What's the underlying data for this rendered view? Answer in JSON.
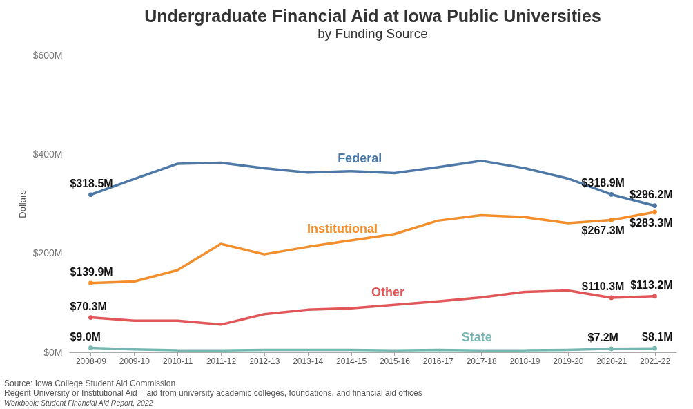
{
  "chart_data": {
    "type": "line",
    "title": "Undergraduate Financial Aid at Iowa Public Universities",
    "subtitle": "by Funding Source",
    "ylabel": "Dollars",
    "categories": [
      "2008-09",
      "2009-10",
      "2010-11",
      "2011-12",
      "2012-13",
      "2013-14",
      "2014-15",
      "2015-16",
      "2016-17",
      "2017-18",
      "2018-19",
      "2019-20",
      "2020-21",
      "2021-22"
    ],
    "series": [
      {
        "name": "Federal",
        "color": "#4e79a7",
        "values": [
          318.5,
          350,
          381,
          383,
          372,
          363,
          366,
          362,
          374,
          387,
          372,
          351,
          318.9,
          296.2
        ],
        "value_labels": [
          "$318.5M",
          null,
          null,
          null,
          null,
          null,
          null,
          null,
          null,
          null,
          null,
          null,
          "$318.9M",
          "$296.2M"
        ]
      },
      {
        "name": "Institutional",
        "color": "#f28e2b",
        "values": [
          139.9,
          143,
          166,
          219,
          198,
          213,
          226,
          239,
          266,
          277,
          273,
          261,
          267.3,
          283.3
        ],
        "value_labels": [
          "$139.9M",
          null,
          null,
          null,
          null,
          null,
          null,
          null,
          null,
          null,
          null,
          null,
          "$267.3M",
          "$283.3M"
        ]
      },
      {
        "name": "Other",
        "color": "#e15759",
        "values": [
          70.3,
          64,
          64,
          56,
          77,
          86,
          89,
          96,
          103,
          111,
          122,
          125,
          110.3,
          113.2
        ],
        "value_labels": [
          "$70.3M",
          null,
          null,
          null,
          null,
          null,
          null,
          null,
          null,
          null,
          null,
          null,
          "$110.3M",
          "$113.2M"
        ]
      },
      {
        "name": "State",
        "color": "#76b7b2",
        "values": [
          9.0,
          6,
          4,
          4,
          5,
          5,
          5,
          4,
          5,
          4,
          4,
          5,
          7.2,
          8.1
        ],
        "value_labels": [
          "$9.0M",
          null,
          null,
          null,
          null,
          null,
          null,
          null,
          null,
          null,
          null,
          null,
          "$7.2M",
          "$8.1M"
        ]
      }
    ],
    "ylim": [
      0,
      600
    ],
    "yticks": [
      {
        "value": 0,
        "label": "$0M"
      },
      {
        "value": 200,
        "label": "$200M"
      },
      {
        "value": 400,
        "label": "$400M"
      },
      {
        "value": 600,
        "label": "$600M"
      }
    ],
    "grid": false,
    "legend": false,
    "line_style": "solid",
    "annotations": [
      "Source: Iowa College Student Aid Commission",
      "Regent University or Institutional Aid = aid from university academic colleges, foundations, and financial aid offices",
      "Workbook: Student Financial Aid Report, 2022"
    ]
  }
}
